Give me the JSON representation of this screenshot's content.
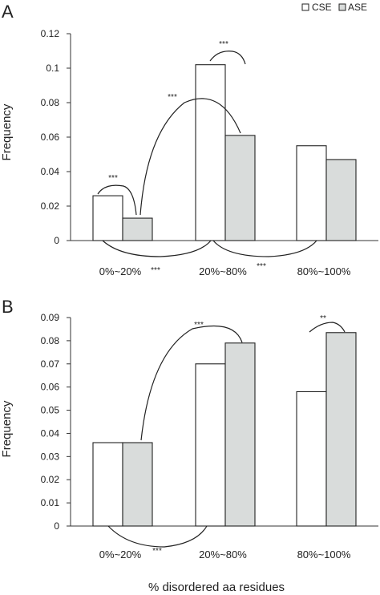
{
  "legend": [
    {
      "label": "CSE",
      "color": "#ffffff"
    },
    {
      "label": "ASE",
      "color": "#d9dcdb"
    }
  ],
  "x_axis_label": "% disordered aa residues",
  "chart_data": [
    {
      "type": "bar",
      "panel_label": "A",
      "categories": [
        "0%~20%",
        "20%~80%",
        "80%~100%"
      ],
      "series": [
        {
          "name": "CSE",
          "values": [
            0.026,
            0.102,
            0.055
          ]
        },
        {
          "name": "ASE",
          "values": [
            0.013,
            0.061,
            0.047
          ]
        }
      ],
      "ylabel": "Frequency",
      "ylim": [
        0,
        0.12
      ],
      "yticks": [
        "0",
        "0.02",
        "0.04",
        "0.06",
        "0.08",
        "0.1",
        "0.12"
      ],
      "annotations": [
        {
          "label": "***",
          "between": "CSE 0%~20% and ASE 0%~20%"
        },
        {
          "label": "***",
          "between": "CSE 20%~80% and ASE 20%~80%"
        },
        {
          "label": "***",
          "between": "ASE 0%~20% and ASE 20%~80%"
        },
        {
          "label": "***",
          "between": "CSE 0%~20% and CSE 20%~80% (below axis)"
        },
        {
          "label": "***",
          "between": "ASE 20%~80% and CSE 80%~100% (below axis)"
        }
      ]
    },
    {
      "type": "bar",
      "panel_label": "B",
      "categories": [
        "0%~20%",
        "20%~80%",
        "80%~100%"
      ],
      "series": [
        {
          "name": "CSE",
          "values": [
            0.036,
            0.07,
            0.058
          ]
        },
        {
          "name": "ASE",
          "values": [
            0.036,
            0.079,
            0.0835
          ]
        }
      ],
      "ylabel": "Frequency",
      "ylim": [
        0,
        0.09
      ],
      "yticks": [
        "0",
        "0.01",
        "0.02",
        "0.03",
        "0.04",
        "0.05",
        "0.06",
        "0.07",
        "0.08",
        "0.09"
      ],
      "xlabel": "% disordered aa residues",
      "annotations": [
        {
          "label": "***",
          "between": "ASE 0%~20% and ASE 20%~80%"
        },
        {
          "label": "**",
          "between": "CSE 80%~100% and ASE 80%~100%"
        },
        {
          "label": "***",
          "between": "CSE 0%~20% and CSE 20%~80% (below axis)"
        }
      ]
    }
  ]
}
